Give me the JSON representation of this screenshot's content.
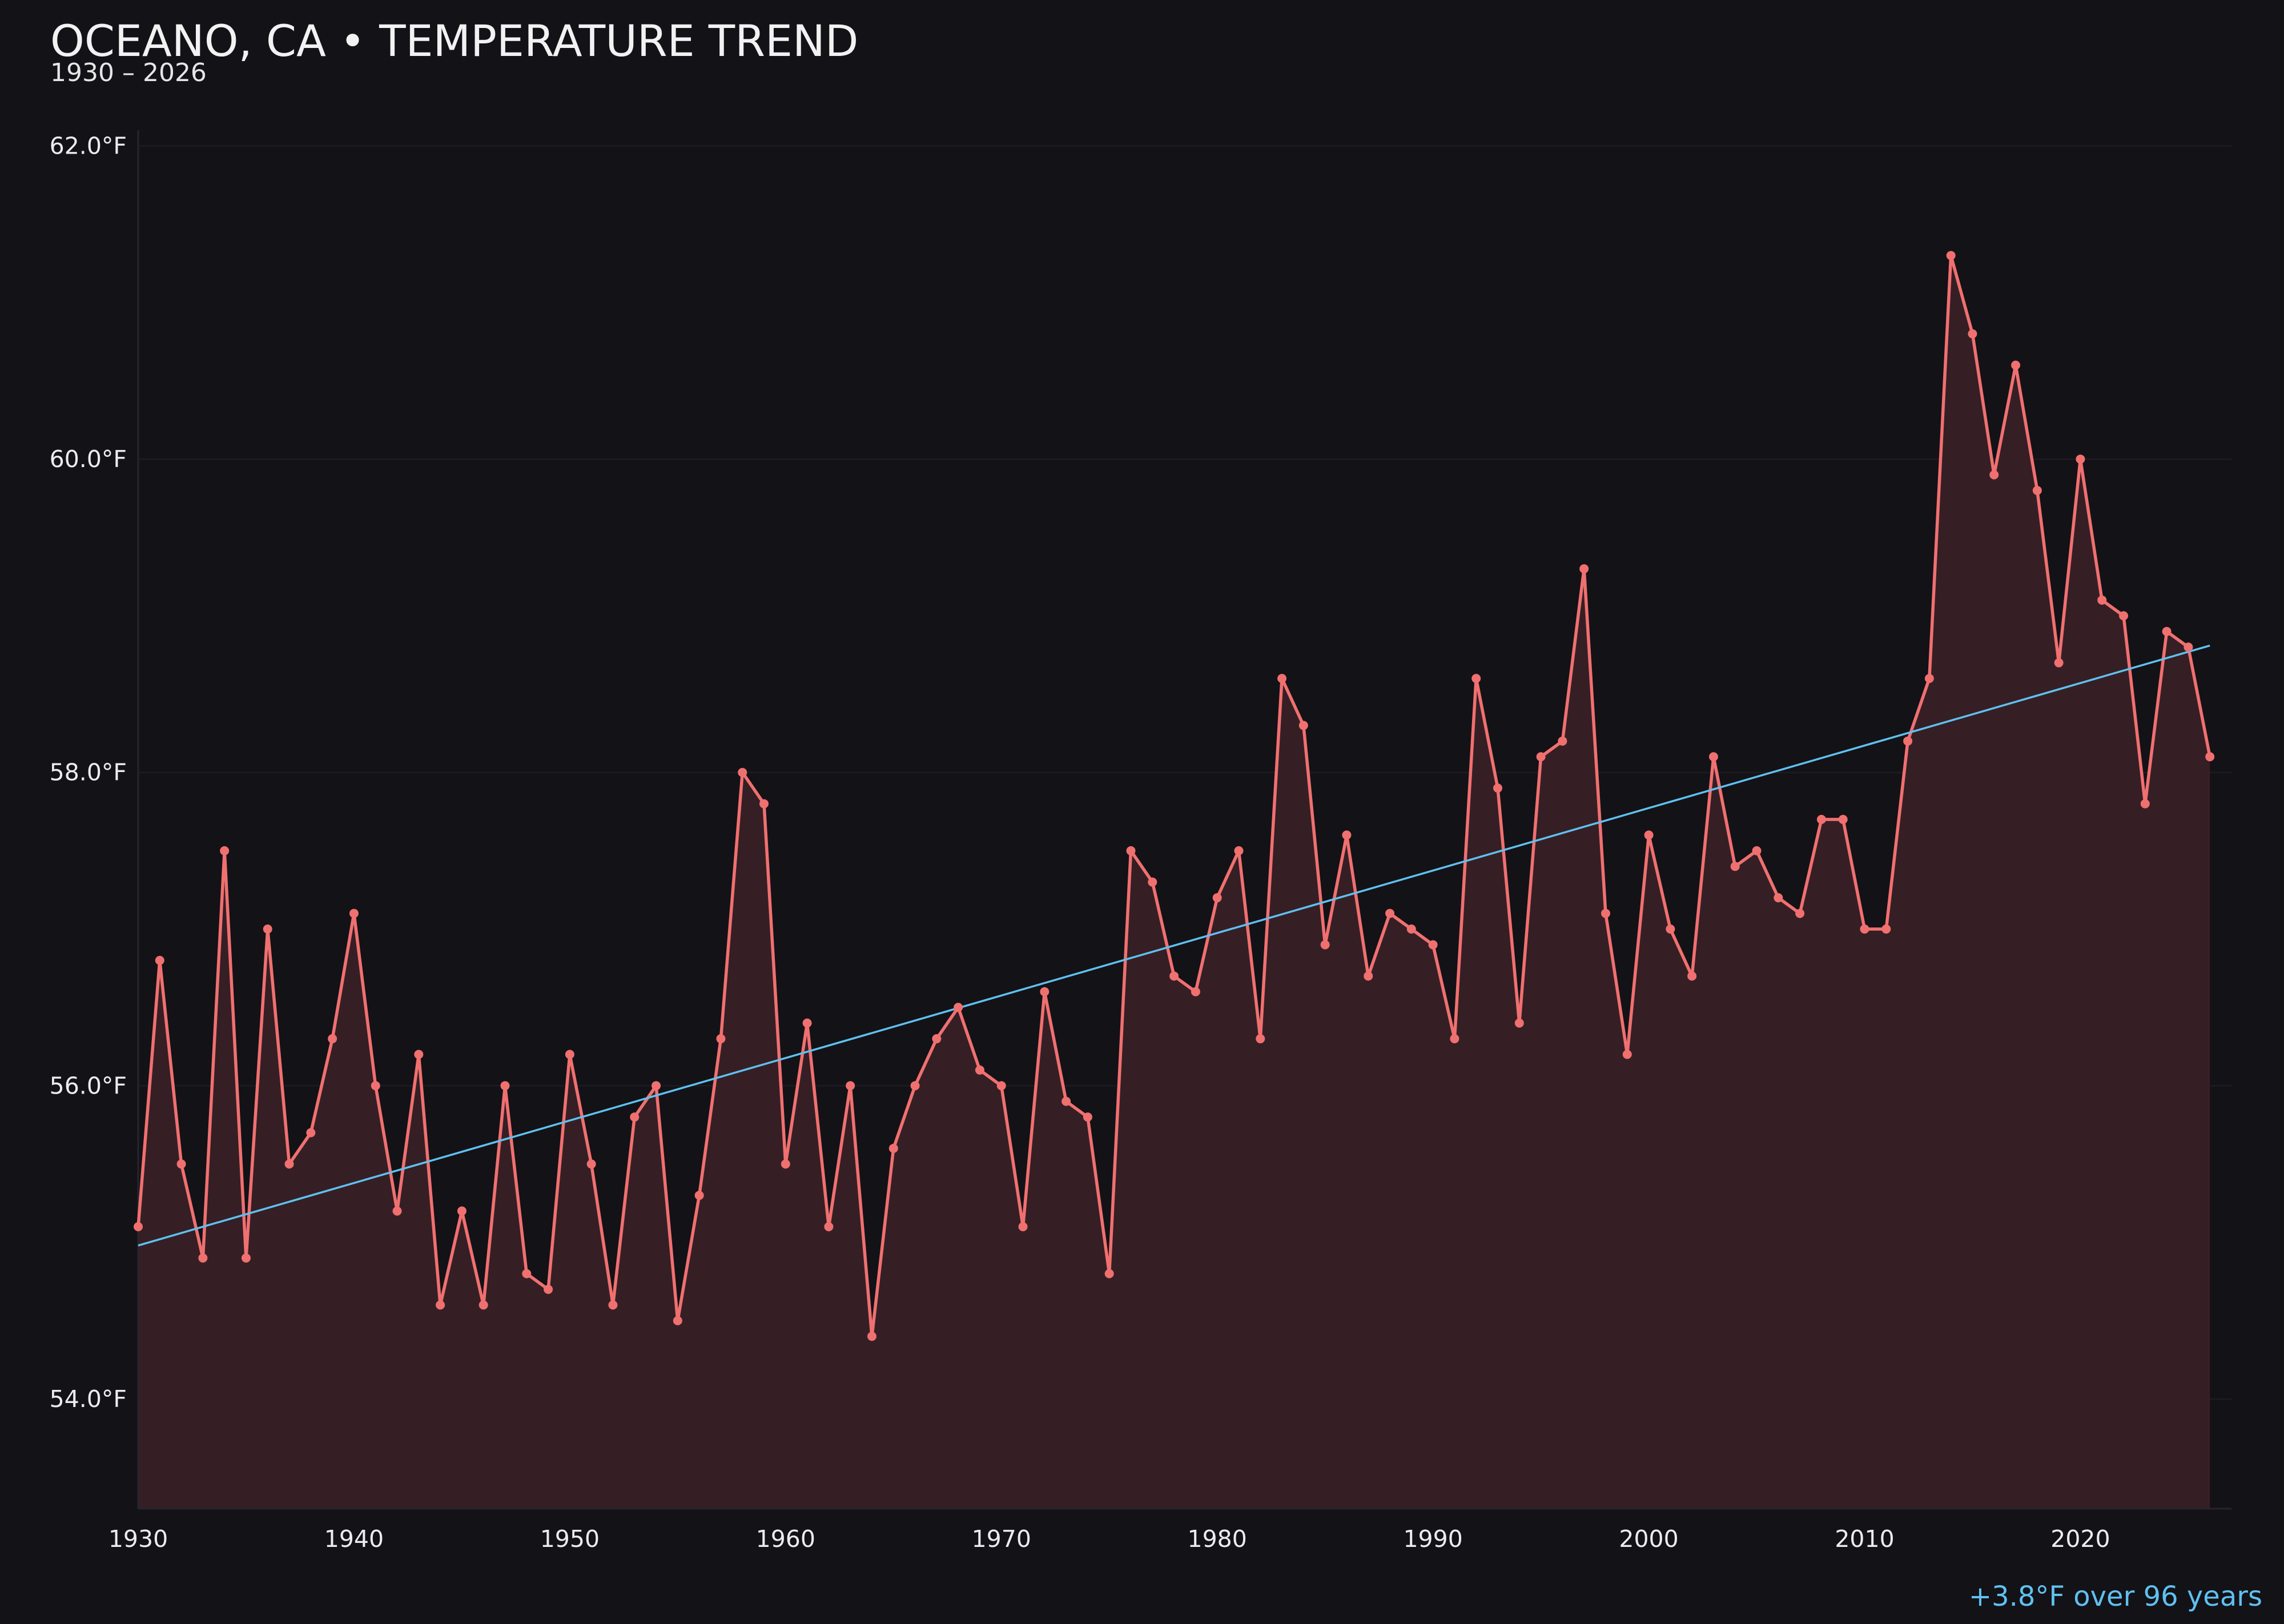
{
  "colors": {
    "background": "#131217",
    "series_line": "#f07070",
    "series_fill": "#351f25",
    "trend_line": "#5fc1f0",
    "grid": "#1f1e24",
    "text": "#ececec"
  },
  "chart_data": {
    "type": "line",
    "title": "OCEANO, CA • TEMPERATURE TREND",
    "subtitle": "1930 – 2026",
    "x_tick_labels": [
      "1930",
      "1940",
      "1950",
      "1960",
      "1970",
      "1980",
      "1990",
      "2000",
      "2010",
      "2020"
    ],
    "x_ticks": [
      1930,
      1940,
      1950,
      1960,
      1970,
      1980,
      1990,
      2000,
      2010,
      2020
    ],
    "y_tick_labels": [
      "62.0°F",
      "60.0°F",
      "58.0°F",
      "56.0°F",
      "54.0°F"
    ],
    "y_ticks": [
      62,
      60,
      58,
      56,
      54
    ],
    "xlim": [
      1930,
      2027
    ],
    "ylim": [
      53.3,
      62.1
    ],
    "grid": true,
    "area_fill": true,
    "x": [
      1930,
      1931,
      1932,
      1933,
      1934,
      1935,
      1936,
      1937,
      1938,
      1939,
      1940,
      1941,
      1942,
      1943,
      1944,
      1945,
      1946,
      1947,
      1948,
      1949,
      1950,
      1951,
      1952,
      1953,
      1954,
      1955,
      1956,
      1957,
      1958,
      1959,
      1960,
      1961,
      1962,
      1963,
      1964,
      1965,
      1966,
      1967,
      1968,
      1969,
      1970,
      1971,
      1972,
      1973,
      1974,
      1975,
      1976,
      1977,
      1978,
      1979,
      1980,
      1981,
      1982,
      1983,
      1984,
      1985,
      1986,
      1987,
      1988,
      1989,
      1990,
      1991,
      1992,
      1993,
      1994,
      1995,
      1996,
      1997,
      1998,
      1999,
      2000,
      2001,
      2002,
      2003,
      2004,
      2005,
      2006,
      2007,
      2008,
      2009,
      2010,
      2011,
      2012,
      2013,
      2014,
      2015,
      2016,
      2017,
      2018,
      2019,
      2020,
      2021,
      2022,
      2023,
      2024,
      2025,
      2026
    ],
    "series": [
      {
        "values": [
          55.1,
          56.8,
          55.5,
          54.9,
          57.5,
          54.9,
          57.0,
          55.5,
          55.7,
          56.3,
          57.1,
          56.0,
          55.2,
          56.2,
          54.6,
          55.2,
          54.6,
          56.0,
          54.8,
          54.7,
          56.2,
          55.5,
          54.6,
          55.8,
          56.0,
          54.5,
          55.3,
          56.3,
          58.0,
          57.8,
          55.5,
          56.4,
          55.1,
          56.0,
          54.4,
          55.6,
          56.0,
          56.3,
          56.5,
          56.1,
          56.0,
          55.1,
          56.6,
          55.9,
          55.8,
          54.8,
          57.5,
          57.3,
          56.7,
          56.6,
          57.2,
          57.5,
          56.3,
          58.6,
          58.3,
          56.9,
          57.6,
          56.7,
          57.1,
          57.0,
          56.9,
          56.3,
          58.6,
          57.9,
          56.4,
          58.1,
          58.2,
          59.3,
          57.1,
          56.2,
          57.6,
          57.0,
          56.7,
          58.1,
          57.4,
          57.5,
          57.2,
          57.1,
          57.7,
          57.7,
          57.0,
          57.0,
          58.2,
          58.6,
          61.3,
          60.8,
          59.9,
          60.6,
          59.8,
          58.7,
          60.0,
          59.1,
          59.0,
          57.8,
          58.9,
          58.8,
          58.1
        ]
      }
    ],
    "trend_line": {
      "x": [
        1930,
        2026
      ],
      "values": [
        54.98,
        58.81
      ]
    },
    "trend_annotation": "+3.8°F over 96 years"
  }
}
